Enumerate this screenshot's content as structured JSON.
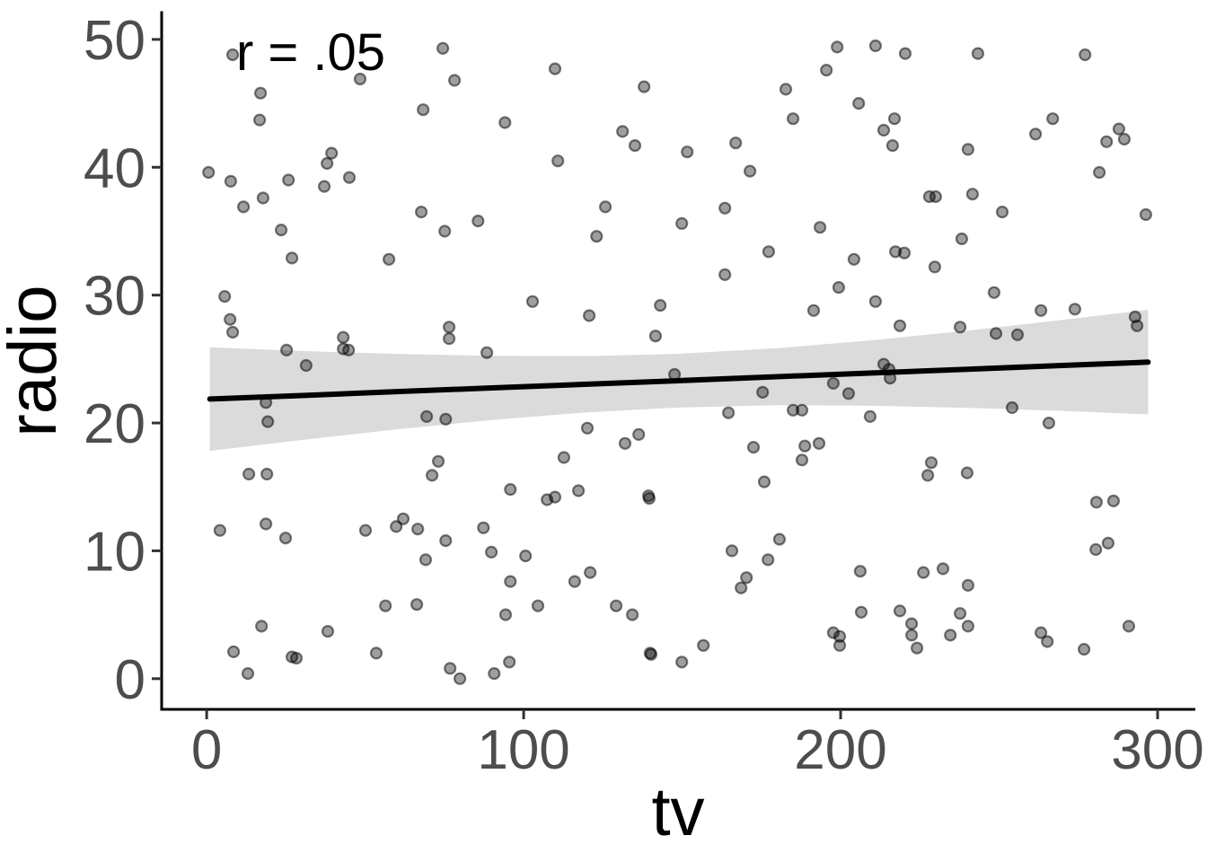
{
  "chart_data": {
    "type": "scatter",
    "title": "",
    "xlabel": "tv",
    "ylabel": "radio",
    "annotation": "r = .05",
    "x_ticks": [
      0,
      100,
      200,
      300
    ],
    "y_ticks": [
      0,
      10,
      20,
      30,
      40,
      50
    ],
    "xlim": [
      -14.2,
      311.9
    ],
    "ylim": [
      -2.4,
      52.1
    ],
    "grid": "off",
    "legend": "none",
    "style": {
      "point_fill": "rgba(0,0,0,0.38)",
      "point_stroke": "rgba(0,0,0,0.5)",
      "ribbon_fill": "rgba(0,0,0,0.14)",
      "line_color": "#000000",
      "axis_color": "#000000",
      "tick_color": "#333333",
      "tick_label_color": "#4d4d4d"
    },
    "smooth": {
      "x": [
        1,
        30,
        60,
        90,
        120,
        148,
        180,
        210,
        240,
        270,
        297
      ],
      "line": [
        21.87,
        22.15,
        22.45,
        22.74,
        23.03,
        23.3,
        23.62,
        23.91,
        24.2,
        24.5,
        24.76
      ],
      "upper": [
        25.92,
        25.63,
        25.4,
        25.25,
        25.23,
        25.4,
        25.85,
        26.47,
        27.22,
        28.06,
        28.85
      ],
      "lower": [
        17.82,
        18.67,
        19.5,
        20.23,
        20.83,
        21.2,
        21.39,
        21.35,
        21.18,
        20.94,
        20.67
      ]
    },
    "points": [
      [
        8.2,
        48.8
      ],
      [
        48.4,
        46.9
      ],
      [
        74.5,
        49.3
      ],
      [
        78.2,
        46.8
      ],
      [
        17.0,
        45.8
      ],
      [
        16.7,
        43.7
      ],
      [
        68.3,
        44.5
      ],
      [
        94.1,
        43.5
      ],
      [
        39.4,
        41.1
      ],
      [
        38.0,
        40.3
      ],
      [
        0.6,
        39.6
      ],
      [
        7.6,
        38.9
      ],
      [
        25.8,
        39.0
      ],
      [
        37.1,
        38.5
      ],
      [
        45.0,
        39.2
      ],
      [
        17.8,
        37.6
      ],
      [
        11.6,
        36.9
      ],
      [
        67.7,
        36.5
      ],
      [
        85.6,
        35.8
      ],
      [
        23.5,
        35.1
      ],
      [
        75.1,
        35.0
      ],
      [
        109.9,
        47.7
      ],
      [
        138.0,
        46.3
      ],
      [
        198.9,
        49.4
      ],
      [
        195.5,
        47.6
      ],
      [
        182.7,
        46.1
      ],
      [
        205.7,
        45.0
      ],
      [
        185.0,
        43.8
      ],
      [
        131.2,
        42.8
      ],
      [
        135.1,
        41.7
      ],
      [
        151.6,
        41.2
      ],
      [
        166.9,
        41.9
      ],
      [
        110.8,
        40.5
      ],
      [
        171.4,
        39.7
      ],
      [
        125.8,
        36.9
      ],
      [
        163.5,
        36.8
      ],
      [
        149.9,
        35.6
      ],
      [
        123.0,
        34.6
      ],
      [
        193.5,
        35.3
      ],
      [
        211.0,
        49.5
      ],
      [
        220.4,
        48.9
      ],
      [
        243.3,
        48.9
      ],
      [
        277.1,
        48.8
      ],
      [
        217.0,
        43.8
      ],
      [
        213.6,
        42.9
      ],
      [
        216.4,
        41.7
      ],
      [
        240.2,
        41.4
      ],
      [
        266.9,
        43.8
      ],
      [
        261.5,
        42.6
      ],
      [
        287.8,
        43.0
      ],
      [
        283.9,
        42.0
      ],
      [
        289.5,
        42.2
      ],
      [
        281.6,
        39.6
      ],
      [
        228.0,
        37.7
      ],
      [
        230.0,
        37.7
      ],
      [
        241.6,
        37.9
      ],
      [
        251.0,
        36.5
      ],
      [
        296.3,
        36.3
      ],
      [
        238.2,
        34.4
      ],
      [
        26.9,
        32.9
      ],
      [
        57.5,
        32.8
      ],
      [
        5.7,
        29.9
      ],
      [
        7.4,
        28.1
      ],
      [
        8.2,
        27.1
      ],
      [
        43.1,
        26.7
      ],
      [
        43.1,
        25.8
      ],
      [
        44.8,
        25.7
      ],
      [
        25.2,
        25.7
      ],
      [
        31.4,
        24.5
      ],
      [
        76.5,
        27.5
      ],
      [
        76.5,
        26.6
      ],
      [
        88.4,
        25.5
      ],
      [
        18.7,
        21.6
      ],
      [
        19.3,
        20.1
      ],
      [
        69.4,
        20.5
      ],
      [
        75.4,
        20.3
      ],
      [
        73.1,
        17.0
      ],
      [
        177.3,
        33.4
      ],
      [
        204.2,
        32.8
      ],
      [
        163.5,
        31.6
      ],
      [
        199.4,
        30.6
      ],
      [
        102.8,
        29.5
      ],
      [
        143.1,
        29.2
      ],
      [
        120.7,
        28.4
      ],
      [
        191.5,
        28.8
      ],
      [
        141.6,
        26.8
      ],
      [
        147.6,
        23.8
      ],
      [
        175.4,
        22.4
      ],
      [
        197.7,
        23.1
      ],
      [
        202.5,
        22.3
      ],
      [
        164.6,
        20.8
      ],
      [
        185.0,
        21.0
      ],
      [
        187.8,
        21.0
      ],
      [
        120.1,
        19.6
      ],
      [
        136.3,
        19.1
      ],
      [
        132.0,
        18.4
      ],
      [
        112.7,
        17.3
      ],
      [
        172.5,
        18.1
      ],
      [
        188.7,
        18.2
      ],
      [
        193.2,
        18.4
      ],
      [
        187.8,
        17.1
      ],
      [
        217.3,
        33.4
      ],
      [
        220.1,
        33.3
      ],
      [
        229.7,
        32.2
      ],
      [
        248.4,
        30.2
      ],
      [
        211.0,
        29.5
      ],
      [
        263.2,
        28.8
      ],
      [
        273.9,
        28.9
      ],
      [
        218.7,
        27.6
      ],
      [
        237.7,
        27.5
      ],
      [
        249.0,
        27.0
      ],
      [
        255.8,
        26.9
      ],
      [
        292.9,
        28.3
      ],
      [
        293.5,
        27.6
      ],
      [
        213.6,
        24.6
      ],
      [
        215.3,
        24.2
      ],
      [
        215.6,
        23.5
      ],
      [
        254.1,
        21.2
      ],
      [
        209.3,
        20.5
      ],
      [
        265.7,
        20.0
      ],
      [
        228.6,
        16.9
      ],
      [
        239.9,
        16.1
      ],
      [
        227.5,
        15.9
      ],
      [
        13.3,
        16.0
      ],
      [
        19.0,
        16.0
      ],
      [
        71.1,
        15.9
      ],
      [
        95.8,
        14.8
      ],
      [
        4.2,
        11.6
      ],
      [
        18.7,
        12.1
      ],
      [
        24.9,
        11.0
      ],
      [
        50.1,
        11.6
      ],
      [
        59.8,
        11.9
      ],
      [
        62.0,
        12.5
      ],
      [
        66.6,
        11.7
      ],
      [
        75.4,
        10.8
      ],
      [
        87.3,
        11.8
      ],
      [
        69.1,
        9.3
      ],
      [
        89.8,
        9.9
      ],
      [
        95.8,
        7.6
      ],
      [
        56.4,
        5.7
      ],
      [
        66.3,
        5.8
      ],
      [
        94.3,
        5.0
      ],
      [
        17.3,
        4.1
      ],
      [
        38.2,
        3.7
      ],
      [
        8.5,
        2.1
      ],
      [
        26.9,
        1.7
      ],
      [
        28.3,
        1.6
      ],
      [
        53.5,
        2.0
      ],
      [
        13.0,
        0.4
      ],
      [
        76.8,
        0.8
      ],
      [
        79.9,
        0.0
      ],
      [
        90.7,
        0.4
      ],
      [
        95.5,
        1.3
      ],
      [
        107.4,
        14.0
      ],
      [
        109.9,
        14.2
      ],
      [
        117.3,
        14.7
      ],
      [
        139.4,
        14.3
      ],
      [
        139.6,
        14.1
      ],
      [
        175.9,
        15.4
      ],
      [
        100.6,
        9.6
      ],
      [
        180.7,
        10.9
      ],
      [
        165.7,
        10.0
      ],
      [
        177.1,
        9.3
      ],
      [
        116.1,
        7.6
      ],
      [
        121.0,
        8.3
      ],
      [
        170.3,
        7.9
      ],
      [
        168.6,
        7.1
      ],
      [
        206.2,
        8.4
      ],
      [
        104.5,
        5.7
      ],
      [
        129.2,
        5.7
      ],
      [
        134.3,
        5.0
      ],
      [
        206.5,
        5.2
      ],
      [
        197.7,
        3.6
      ],
      [
        199.7,
        3.3
      ],
      [
        199.7,
        2.6
      ],
      [
        156.7,
        2.6
      ],
      [
        139.9,
        2.0
      ],
      [
        140.2,
        1.9
      ],
      [
        149.9,
        1.3
      ],
      [
        280.7,
        13.8
      ],
      [
        286.1,
        13.9
      ],
      [
        284.4,
        10.6
      ],
      [
        280.5,
        10.1
      ],
      [
        226.1,
        8.3
      ],
      [
        232.3,
        8.6
      ],
      [
        240.2,
        7.3
      ],
      [
        218.7,
        5.3
      ],
      [
        222.4,
        4.3
      ],
      [
        237.7,
        5.1
      ],
      [
        240.2,
        4.1
      ],
      [
        222.4,
        3.4
      ],
      [
        234.6,
        3.4
      ],
      [
        224.1,
        2.4
      ],
      [
        263.2,
        3.6
      ],
      [
        265.2,
        2.9
      ],
      [
        276.8,
        2.3
      ],
      [
        290.9,
        4.1
      ]
    ]
  }
}
